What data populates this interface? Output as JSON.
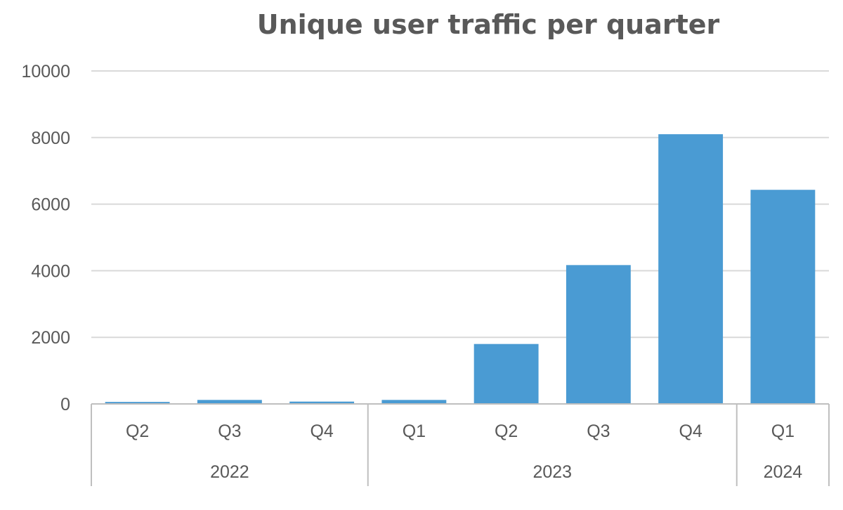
{
  "chart_data": {
    "type": "bar",
    "title": "Unique user traffic per quarter",
    "xlabel": "",
    "ylabel": "",
    "ylim": [
      0,
      10000
    ],
    "yticks": [
      0,
      2000,
      4000,
      6000,
      8000,
      10000
    ],
    "grid": true,
    "categories": [
      "Q2",
      "Q3",
      "Q4",
      "Q1",
      "Q2",
      "Q3",
      "Q4",
      "Q1"
    ],
    "groups": [
      {
        "label": "2022",
        "count": 3
      },
      {
        "label": "2023",
        "count": 4
      },
      {
        "label": "2024",
        "count": 1
      }
    ],
    "series": [
      {
        "values": [
          60,
          120,
          70,
          120,
          1800,
          4170,
          8100,
          6430
        ],
        "color": "#4a9bd3"
      }
    ]
  }
}
